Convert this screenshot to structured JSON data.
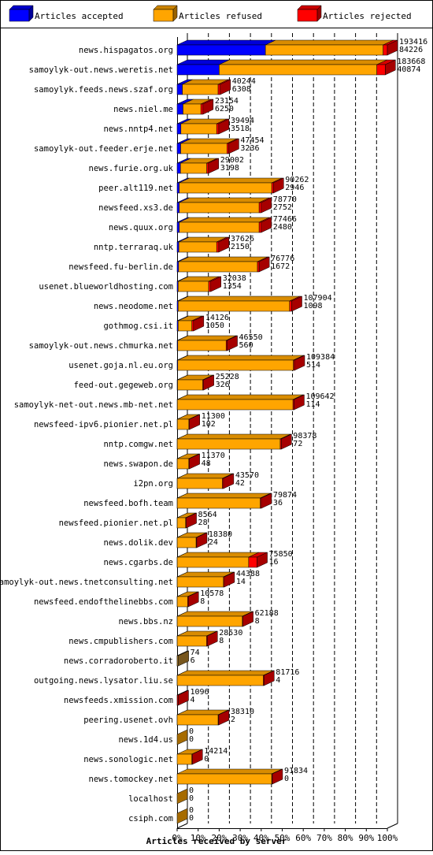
{
  "chart_data": {
    "type": "bar",
    "stacked": true,
    "orientation": "horizontal",
    "title": "",
    "xlabel": "Articles received by server",
    "ylabel": "",
    "xlim": [
      0,
      100
    ],
    "x_unit": "%",
    "x_ticks": [
      "0%",
      "10%",
      "20%",
      "30%",
      "40%",
      "50%",
      "60%",
      "70%",
      "80%",
      "90%",
      "100%"
    ],
    "legend_position": "top",
    "grid": true,
    "series": [
      {
        "name": "Articles accepted",
        "color": "#0000ff"
      },
      {
        "name": "Articles refused",
        "color": "#ffa500"
      },
      {
        "name": "Articles rejected",
        "color": "#ff0000"
      }
    ],
    "rows": [
      {
        "server": "news.hispagatos.org",
        "accepted": 42,
        "refused": 56,
        "rejected": 2,
        "label1": "193416",
        "label2": "84226"
      },
      {
        "server": "samoylyk-out.news.weretis.net",
        "accepted": 20,
        "refused": 75,
        "rejected": 4,
        "label1": "183668",
        "label2": "40874"
      },
      {
        "server": "samoylyk.feeds.news.szaf.org",
        "accepted": 2.5,
        "refused": 17,
        "rejected": 1,
        "label1": "40244",
        "label2": "6308"
      },
      {
        "server": "news.niel.me",
        "accepted": 2.8,
        "refused": 8.5,
        "rejected": 1,
        "label1": "23154",
        "label2": "6250"
      },
      {
        "server": "news.nntp4.net",
        "accepted": 1.8,
        "refused": 17,
        "rejected": 1,
        "label1": "39494",
        "label2": "3518"
      },
      {
        "server": "samoylyk-out.feeder.erje.net",
        "accepted": 1.7,
        "refused": 22,
        "rejected": 0.8,
        "label1": "47454",
        "label2": "3236"
      },
      {
        "server": "news.furie.org.uk",
        "accepted": 1.6,
        "refused": 12.5,
        "rejected": 0.8,
        "label1": "29002",
        "label2": "3198"
      },
      {
        "server": "peer.alt119.net",
        "accepted": 1,
        "refused": 44,
        "rejected": 0.8,
        "label1": "90262",
        "label2": "2946"
      },
      {
        "server": "newsfeed.xs3.de",
        "accepted": 1,
        "refused": 38,
        "rejected": 1,
        "label1": "78770",
        "label2": "2752"
      },
      {
        "server": "news.quux.org",
        "accepted": 1,
        "refused": 38,
        "rejected": 1,
        "label1": "77466",
        "label2": "2480"
      },
      {
        "server": "nntp.terraraq.uk",
        "accepted": 0.8,
        "refused": 18,
        "rejected": 1,
        "label1": "37626",
        "label2": "2150"
      },
      {
        "server": "newsfeed.fu-berlin.de",
        "accepted": 0.7,
        "refused": 37.5,
        "rejected": 0.8,
        "label1": "76776",
        "label2": "1672"
      },
      {
        "server": "usenet.blueworldhosting.com",
        "accepted": 0.5,
        "refused": 14.5,
        "rejected": 1,
        "label1": "32038",
        "label2": "1354"
      },
      {
        "server": "news.neodome.net",
        "accepted": 0.5,
        "refused": 53,
        "rejected": 1,
        "label1": "107904",
        "label2": "1098"
      },
      {
        "server": "gothmog.csi.it",
        "accepted": 0.5,
        "refused": 6.5,
        "rejected": 0.8,
        "label1": "14126",
        "label2": "1050"
      },
      {
        "server": "samoylyk-out.news.chmurka.net",
        "accepted": 0.3,
        "refused": 23,
        "rejected": 0.5,
        "label1": "46550",
        "label2": "560"
      },
      {
        "server": "usenet.goja.nl.eu.org",
        "accepted": 0.3,
        "refused": 55,
        "rejected": 0.5,
        "label1": "109384",
        "label2": "514"
      },
      {
        "server": "feed-out.gegeweb.org",
        "accepted": 0.2,
        "refused": 12,
        "rejected": 0.4,
        "label1": "25228",
        "label2": "326"
      },
      {
        "server": "samoylyk-net-out.news.mb-net.net",
        "accepted": 0.1,
        "refused": 55,
        "rejected": 0.5,
        "label1": "109642",
        "label2": "114"
      },
      {
        "server": "newsfeed-ipv6.pionier.net.pl",
        "accepted": 0.1,
        "refused": 5.5,
        "rejected": 0.3,
        "label1": "11300",
        "label2": "102"
      },
      {
        "server": "nntp.comgw.net",
        "accepted": 0.05,
        "refused": 49,
        "rejected": 0.5,
        "label1": "98378",
        "label2": "72"
      },
      {
        "server": "news.swapon.de",
        "accepted": 0.05,
        "refused": 5.5,
        "rejected": 0.3,
        "label1": "11370",
        "label2": "48"
      },
      {
        "server": "i2pn.org",
        "accepted": 0.05,
        "refused": 21.5,
        "rejected": 0.5,
        "label1": "43570",
        "label2": "42"
      },
      {
        "server": "newsfeed.bofh.team",
        "accepted": 0.05,
        "refused": 39.5,
        "rejected": 0.5,
        "label1": "79874",
        "label2": "36"
      },
      {
        "server": "newsfeed.pionier.net.pl",
        "accepted": 0.03,
        "refused": 4,
        "rejected": 0.3,
        "label1": "8564",
        "label2": "28"
      },
      {
        "server": "news.dolik.dev",
        "accepted": 0.03,
        "refused": 9,
        "rejected": 0.3,
        "label1": "18380",
        "label2": "24"
      },
      {
        "server": "news.cgarbs.de",
        "accepted": 0.03,
        "refused": 34,
        "rejected": 4,
        "label1": "75850",
        "label2": "16"
      },
      {
        "server": "samoylyk-out.news.tnetconsulting.net",
        "accepted": 0.03,
        "refused": 22,
        "rejected": 0.4,
        "label1": "44388",
        "label2": "14"
      },
      {
        "server": "newsfeed.endofthelinebbs.com",
        "accepted": 0.02,
        "refused": 5,
        "rejected": 0.3,
        "label1": "10578",
        "label2": "8"
      },
      {
        "server": "news.bbs.nz",
        "accepted": 0.02,
        "refused": 31,
        "rejected": 0.3,
        "label1": "62188",
        "label2": "8"
      },
      {
        "server": "news.cmpublishers.com",
        "accepted": 0.02,
        "refused": 14,
        "rejected": 0.3,
        "label1": "28530",
        "label2": "8"
      },
      {
        "server": "news.corradoroberto.it",
        "accepted": 0.01,
        "refused": 0.6,
        "rejected": 0,
        "label1": "74",
        "label2": "6",
        "muted": true
      },
      {
        "server": "outgoing.news.lysator.liu.se",
        "accepted": 0.01,
        "refused": 41,
        "rejected": 0.3,
        "label1": "81716",
        "label2": "4"
      },
      {
        "server": "newsfeeds.xmission.com",
        "accepted": 0.05,
        "refused": 0,
        "rejected": 0.5,
        "label1": "1096",
        "label2": "4"
      },
      {
        "server": "peering.usenet.ovh",
        "accepted": 0.01,
        "refused": 19.5,
        "rejected": 0.3,
        "label1": "38310",
        "label2": "2"
      },
      {
        "server": "news.1d4.us",
        "accepted": 0,
        "refused": 0,
        "rejected": 0,
        "label1": "0",
        "label2": "0"
      },
      {
        "server": "news.sonologic.net",
        "accepted": 0,
        "refused": 7,
        "rejected": 0.2,
        "label1": "14214",
        "label2": "0"
      },
      {
        "server": "news.tomockey.net",
        "accepted": 0,
        "refused": 45,
        "rejected": 0.3,
        "label1": "91834",
        "label2": "0"
      },
      {
        "server": "localhost",
        "accepted": 0,
        "refused": 0,
        "rejected": 0,
        "label1": "0",
        "label2": "0"
      },
      {
        "server": "csiph.com",
        "accepted": 0,
        "refused": 0,
        "rejected": 0,
        "label1": "0",
        "label2": "0"
      }
    ]
  }
}
